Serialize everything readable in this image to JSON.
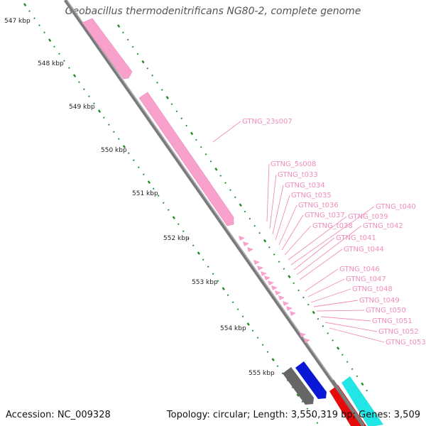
{
  "title": "Geobacillus thermodenitrificans NG80-2, complete genome",
  "footer": {
    "accession": "Accession: NC_009328",
    "summary": "Topology: circular; Length: 3,550,319 bp; Genes: 3,509"
  },
  "kbp_ticks": [
    "547 kbp",
    "548 kbp",
    "549 kbp",
    "550 kbp",
    "551 kbp",
    "552 kbp",
    "553 kbp",
    "554 kbp",
    "555 kbp"
  ],
  "labels": [
    "GTNG_23s007",
    "GTNG_5s008",
    "GTNG_t033",
    "GTNG_t034",
    "GTNG_t035",
    "GTNG_t036",
    "GTNG_t037",
    "GTNG_t038",
    "GTNG_t039",
    "GTNG_t040",
    "GTNG_t041",
    "GTNG_t042",
    "GTNG_t044",
    "GTNG_t046",
    "GTNG_t047",
    "GTNG_t048",
    "GTNG_t049",
    "GTNG_t050",
    "GTNG_t051",
    "GTNG_t052",
    "GTNG_t053"
  ],
  "colors": {
    "rna": "#f7a1cc",
    "backbone": "#7a7a7a",
    "grey_gene": "#666666",
    "blue_gene": "#0a18d6",
    "red_gene": "#e60a0a",
    "cyan_gene": "#22e6e6",
    "green_ticks": "#1e8c1e",
    "label": "#f08dbd"
  }
}
